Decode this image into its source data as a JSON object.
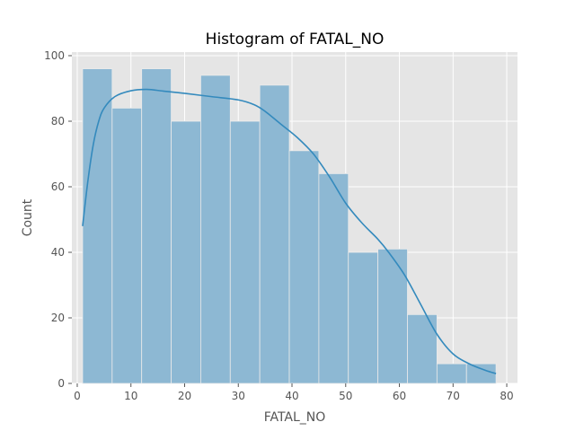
{
  "chart_data": {
    "type": "bar",
    "title": "Histogram of FATAL_NO",
    "xlabel": "FATAL_NO",
    "ylabel": "Count",
    "xlim": [
      -1,
      82
    ],
    "ylim": [
      0,
      100
    ],
    "xticks": [
      0,
      10,
      20,
      30,
      40,
      50,
      60,
      70,
      80
    ],
    "yticks": [
      0,
      20,
      40,
      60,
      80,
      100
    ],
    "grid": true,
    "bins": [
      {
        "start": 1.0,
        "end": 6.5,
        "count": 96
      },
      {
        "start": 6.5,
        "end": 12.0,
        "count": 84
      },
      {
        "start": 12.0,
        "end": 17.5,
        "count": 96
      },
      {
        "start": 17.5,
        "end": 23.0,
        "count": 80
      },
      {
        "start": 23.0,
        "end": 28.5,
        "count": 94
      },
      {
        "start": 28.5,
        "end": 34.0,
        "count": 80
      },
      {
        "start": 34.0,
        "end": 39.5,
        "count": 91
      },
      {
        "start": 39.5,
        "end": 45.0,
        "count": 71
      },
      {
        "start": 45.0,
        "end": 50.5,
        "count": 64
      },
      {
        "start": 50.5,
        "end": 56.0,
        "count": 40
      },
      {
        "start": 56.0,
        "end": 61.5,
        "count": 41
      },
      {
        "start": 61.5,
        "end": 67.0,
        "count": 21
      },
      {
        "start": 67.0,
        "end": 72.5,
        "count": 6
      },
      {
        "start": 72.5,
        "end": 78.0,
        "count": 6
      }
    ],
    "kde": [
      [
        1,
        48
      ],
      [
        2,
        62
      ],
      [
        3,
        73
      ],
      [
        4,
        80
      ],
      [
        5,
        84
      ],
      [
        7,
        87.5
      ],
      [
        10,
        89.3
      ],
      [
        13,
        89.7
      ],
      [
        16,
        89.2
      ],
      [
        20,
        88.5
      ],
      [
        25,
        87.5
      ],
      [
        30,
        86.5
      ],
      [
        33,
        85
      ],
      [
        35,
        83
      ],
      [
        38,
        79
      ],
      [
        41,
        75
      ],
      [
        44,
        70
      ],
      [
        47,
        63
      ],
      [
        50,
        55
      ],
      [
        53,
        49
      ],
      [
        56,
        44
      ],
      [
        58,
        40
      ],
      [
        61,
        33
      ],
      [
        64,
        24
      ],
      [
        67,
        15
      ],
      [
        70,
        9
      ],
      [
        73,
        6
      ],
      [
        76,
        4
      ],
      [
        78,
        3
      ]
    ],
    "colors": {
      "bar_fill": "#8db8d3",
      "bar_edge": "#eaeaea",
      "kde_line": "#348abd",
      "plot_bg": "#e5e5e5",
      "grid": "#ffffff"
    }
  }
}
